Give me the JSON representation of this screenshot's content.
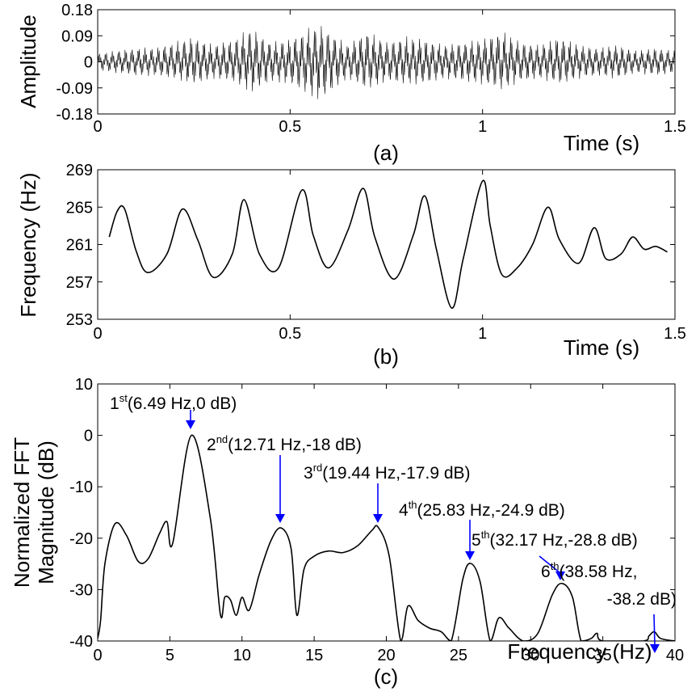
{
  "chart_data": [
    {
      "type": "line",
      "panel_label": "(a)",
      "xlabel": "Time (s)",
      "ylabel": "Amplitude",
      "xlim": [
        0,
        1.5
      ],
      "ylim": [
        -0.18,
        0.18
      ],
      "xticks": [
        "0",
        "0.5",
        "1",
        "1.5"
      ],
      "yticks": [
        "0.18",
        "0.09",
        "0",
        "-0.09",
        "-0.18"
      ],
      "envelope": {
        "t": [
          0,
          0.05,
          0.1,
          0.15,
          0.2,
          0.25,
          0.3,
          0.35,
          0.4,
          0.45,
          0.5,
          0.55,
          0.58,
          0.62,
          0.65,
          0.7,
          0.75,
          0.8,
          0.85,
          0.9,
          0.95,
          1.0,
          1.05,
          1.1,
          1.15,
          1.2,
          1.25,
          1.3,
          1.35,
          1.4,
          1.45,
          1.5
        ],
        "upper": [
          0.03,
          0.04,
          0.05,
          0.05,
          0.07,
          0.09,
          0.06,
          0.08,
          0.12,
          0.07,
          0.08,
          0.12,
          0.13,
          0.09,
          0.06,
          0.11,
          0.07,
          0.09,
          0.08,
          0.06,
          0.07,
          0.08,
          0.11,
          0.07,
          0.06,
          0.09,
          0.06,
          0.05,
          0.06,
          0.04,
          0.05,
          0.04
        ],
        "lower": [
          -0.03,
          -0.04,
          -0.05,
          -0.05,
          -0.06,
          -0.08,
          -0.06,
          -0.07,
          -0.11,
          -0.07,
          -0.08,
          -0.12,
          -0.14,
          -0.09,
          -0.06,
          -0.1,
          -0.07,
          -0.08,
          -0.08,
          -0.06,
          -0.07,
          -0.08,
          -0.1,
          -0.07,
          -0.06,
          -0.08,
          -0.06,
          -0.05,
          -0.06,
          -0.04,
          -0.05,
          -0.04
        ]
      }
    },
    {
      "type": "line",
      "panel_label": "(b)",
      "xlabel": "Time (s)",
      "ylabel": "Frequency (Hz)",
      "xlim": [
        0,
        1.5
      ],
      "ylim": [
        253,
        269
      ],
      "xticks": [
        "0",
        "0.5",
        "1",
        "1.5"
      ],
      "yticks": [
        "269",
        "265",
        "261",
        "257",
        "253"
      ],
      "x": [
        0.03,
        0.05,
        0.07,
        0.1,
        0.13,
        0.18,
        0.22,
        0.26,
        0.3,
        0.35,
        0.38,
        0.42,
        0.47,
        0.53,
        0.56,
        0.6,
        0.65,
        0.69,
        0.72,
        0.77,
        0.82,
        0.85,
        0.88,
        0.92,
        0.95,
        1.0,
        1.02,
        1.05,
        1.09,
        1.13,
        1.17,
        1.2,
        1.25,
        1.29,
        1.32,
        1.36,
        1.39,
        1.42,
        1.45,
        1.48
      ],
      "y": [
        261.8,
        264.5,
        264.8,
        260.3,
        258.0,
        260.0,
        264.8,
        261.5,
        257.5,
        260.0,
        265.8,
        260.0,
        258.5,
        266.8,
        262.0,
        258.5,
        262.5,
        267.0,
        261.8,
        257.3,
        262.0,
        266.2,
        260.5,
        254.2,
        259.5,
        267.8,
        263.0,
        257.8,
        258.5,
        261.0,
        265.0,
        261.5,
        259.0,
        262.8,
        259.5,
        260.0,
        261.8,
        260.5,
        260.8,
        260.2
      ]
    },
    {
      "type": "line",
      "panel_label": "(c)",
      "xlabel": "Frequency (Hz)",
      "ylabel": "Normalized FFT Magnitude (dB)",
      "ylabel_lines": [
        "Normalized FFT",
        "Magnitude (dB)"
      ],
      "xlim": [
        0,
        40
      ],
      "ylim": [
        -40,
        10
      ],
      "xticks": [
        "0",
        "5",
        "10",
        "15",
        "20",
        "25",
        "30",
        "35",
        "40"
      ],
      "yticks": [
        "10",
        "0",
        "-10",
        "-20",
        "-30",
        "-40"
      ],
      "x": [
        0,
        0.2,
        0.5,
        1.2,
        2.0,
        2.8,
        3.5,
        4.3,
        4.8,
        5.2,
        6.49,
        7.8,
        8.5,
        8.8,
        9.2,
        9.6,
        10.0,
        10.5,
        11.2,
        12.0,
        12.71,
        13.4,
        13.8,
        14.3,
        15.0,
        16.0,
        17.0,
        18.0,
        19.0,
        19.44,
        20.2,
        21.0,
        21.5,
        22.2,
        23.0,
        23.8,
        24.5,
        25.3,
        25.83,
        26.5,
        27.2,
        27.8,
        28.5,
        29.5,
        30.5,
        31.5,
        32.17,
        32.9,
        33.5,
        34.2,
        34.6,
        35.0,
        37.8,
        38.2,
        38.58,
        39.0,
        40.0
      ],
      "y": [
        -39.5,
        -36.0,
        -25.0,
        -17.2,
        -19.5,
        -24.5,
        -24.0,
        -19.0,
        -16.8,
        -21.0,
        0.0,
        -16.0,
        -34.8,
        -31.5,
        -32.0,
        -35.0,
        -31.5,
        -34.0,
        -27.0,
        -20.5,
        -18.0,
        -22.0,
        -35.0,
        -26.0,
        -23.5,
        -22.5,
        -22.8,
        -21.5,
        -18.5,
        -17.9,
        -23.5,
        -40.0,
        -33.2,
        -36.0,
        -37.5,
        -38.2,
        -40.0,
        -28.0,
        -24.9,
        -28.5,
        -40.0,
        -35.5,
        -37.5,
        -40.0,
        -38.5,
        -31.0,
        -28.8,
        -31.5,
        -40.0,
        -39.5,
        -38.5,
        -40.0,
        -40.0,
        -39.0,
        -38.2,
        -39.5,
        -40.0
      ],
      "annotations": [
        {
          "ord": "1",
          "sup": "st",
          "text": "(6.49 Hz,0 dB)",
          "x": 6.49,
          "y": 0
        },
        {
          "ord": "2",
          "sup": "nd",
          "text": "(12.71 Hz,-18 dB)",
          "x": 12.71,
          "y": -18
        },
        {
          "ord": "3",
          "sup": "rd",
          "text": "(19.44 Hz,-17.9 dB)",
          "x": 19.44,
          "y": -17.9
        },
        {
          "ord": "4",
          "sup": "th",
          "text": "(25.83 Hz,-24.9 dB)",
          "x": 25.83,
          "y": -24.9
        },
        {
          "ord": "5",
          "sup": "th",
          "text": "(32.17 Hz,-28.8 dB)",
          "x": 32.17,
          "y": -28.8
        },
        {
          "ord": "6",
          "sup": "th",
          "text": "(38.58 Hz,",
          "text2": "-38.2 dB)",
          "x": 38.58,
          "y": -38.2
        }
      ],
      "arrow_color": "#0000ff"
    }
  ]
}
